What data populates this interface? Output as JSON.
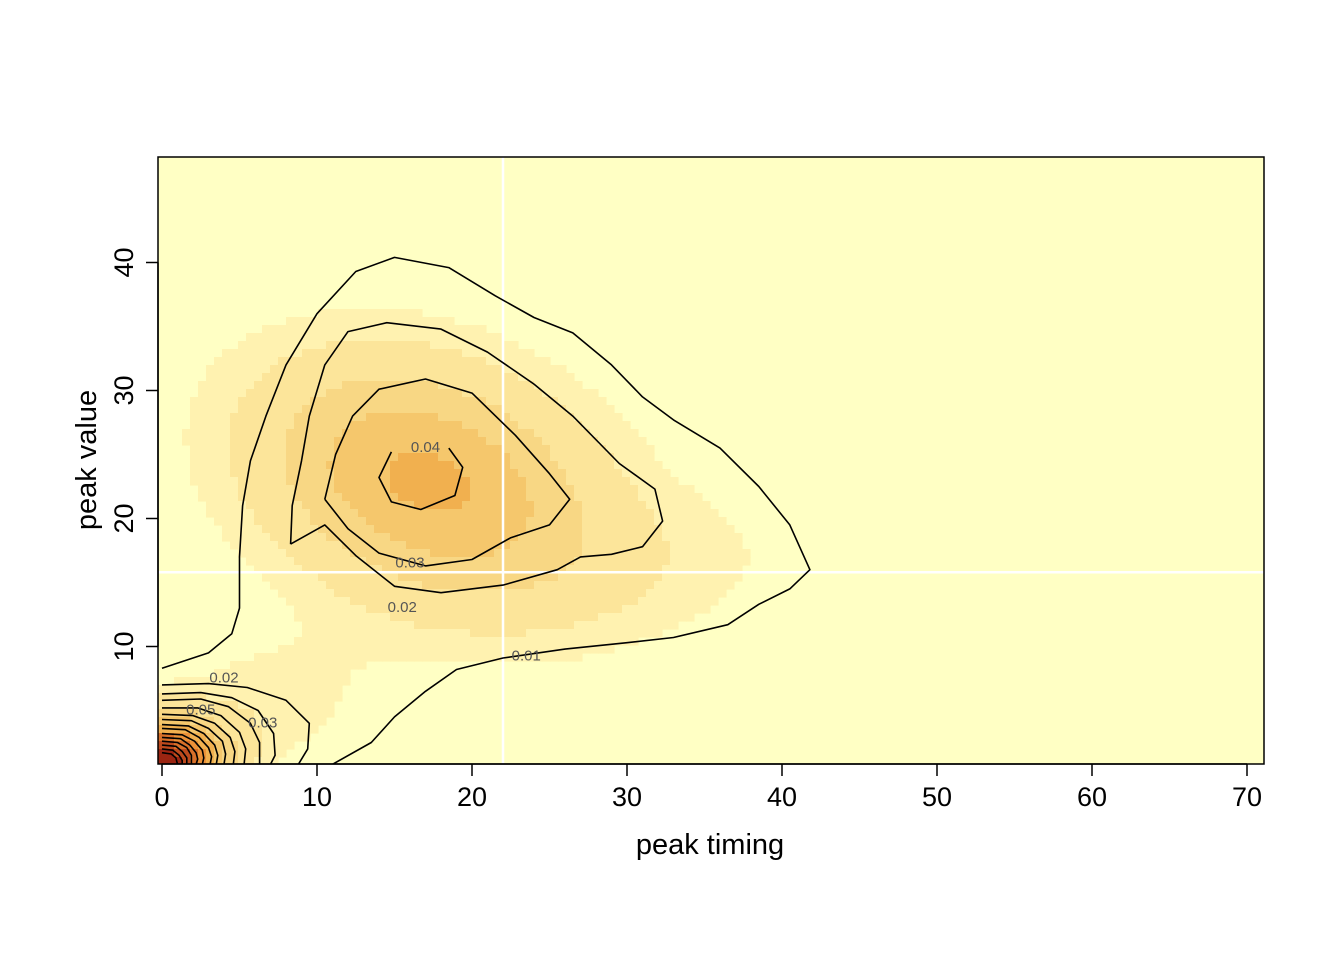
{
  "chart_data": {
    "type": "heatmap",
    "subtype": "filled-contour density",
    "title": "",
    "xlabel": "peak timing",
    "ylabel": "peak value",
    "xlim": [
      -0.5,
      71
    ],
    "ylim": [
      0.8,
      48
    ],
    "x_ticks": [
      0,
      10,
      20,
      30,
      40,
      50,
      60,
      70
    ],
    "y_ticks": [
      10,
      20,
      30,
      40
    ],
    "grid": false,
    "colors": {
      "background": "#ffffc4",
      "fill_levels": [
        "#ffffc4",
        "#fff2b0",
        "#fce59a",
        "#f8d784",
        "#f5c76c",
        "#f1b04f",
        "#eb9138",
        "#d8702a",
        "#bd4a1d",
        "#9b2512",
        "#7a0a06"
      ],
      "contour_line": "#000000",
      "reference_line": "#ffffff"
    },
    "reference_lines": {
      "x": 22,
      "y": 15.8
    },
    "contour_labels": [
      {
        "text": "0.04",
        "x": 17,
        "y": 25.5
      },
      {
        "text": "0.03",
        "x": 16,
        "y": 16.5
      },
      {
        "text": "0.02",
        "x": 15.5,
        "y": 13
      },
      {
        "text": "0.01",
        "x": 23.5,
        "y": 9.2
      },
      {
        "text": "0.02",
        "x": 4,
        "y": 7.5
      },
      {
        "text": "0.05",
        "x": 2.5,
        "y": 5
      },
      {
        "text": "0.03",
        "x": 6.5,
        "y": 4
      }
    ],
    "contours": [
      {
        "level": 0.01,
        "points": [
          [
            0,
            8.3
          ],
          [
            3,
            9.5
          ],
          [
            4.5,
            11
          ],
          [
            5,
            13
          ],
          [
            5,
            17
          ],
          [
            5.2,
            21
          ],
          [
            5.7,
            24.5
          ],
          [
            6.7,
            28
          ],
          [
            8,
            32
          ],
          [
            10,
            36
          ],
          [
            12.5,
            39.3
          ],
          [
            15,
            40.4
          ],
          [
            18.5,
            39.6
          ],
          [
            21.5,
            37.4
          ],
          [
            24,
            35.7
          ],
          [
            26.5,
            34.5
          ],
          [
            29,
            32
          ],
          [
            31,
            29.5
          ],
          [
            33,
            27.7
          ],
          [
            36,
            25.5
          ],
          [
            38.5,
            22.5
          ],
          [
            40.5,
            19.5
          ],
          [
            41.8,
            16
          ],
          [
            40.5,
            14.5
          ],
          [
            38.5,
            13.3
          ],
          [
            36.5,
            11.7
          ],
          [
            33,
            10.7
          ],
          [
            30,
            10.3
          ],
          [
            26,
            9.8
          ],
          [
            22,
            9.1
          ],
          [
            19,
            8.2
          ],
          [
            17,
            6.5
          ],
          [
            15,
            4.5
          ],
          [
            13.5,
            2.5
          ],
          [
            11,
            0.8
          ]
        ]
      },
      {
        "level": 0.02,
        "points": [
          [
            8.3,
            18
          ],
          [
            10.5,
            19.5
          ],
          [
            12.5,
            17.1
          ],
          [
            15,
            14.7
          ],
          [
            18,
            14.2
          ],
          [
            22,
            14.8
          ],
          [
            25.5,
            16
          ],
          [
            27,
            17
          ],
          [
            29,
            17.2
          ],
          [
            31,
            17.8
          ],
          [
            32.3,
            19.8
          ],
          [
            31.8,
            22.3
          ],
          [
            29.5,
            24.3
          ],
          [
            26.5,
            28
          ],
          [
            24,
            30.5
          ],
          [
            21,
            33
          ],
          [
            18,
            34.8
          ],
          [
            14.5,
            35.3
          ],
          [
            12,
            34.6
          ],
          [
            10.5,
            32
          ],
          [
            9.5,
            28
          ],
          [
            9,
            24.5
          ],
          [
            8.4,
            21
          ],
          [
            8.3,
            18
          ]
        ]
      },
      {
        "level": 0.03,
        "points": [
          [
            10.5,
            21.5
          ],
          [
            12,
            19.2
          ],
          [
            14,
            17.3
          ],
          [
            17,
            16.3
          ],
          [
            20,
            16.8
          ],
          [
            22.5,
            18.5
          ],
          [
            25,
            19.5
          ],
          [
            26.3,
            21.5
          ],
          [
            25,
            23.5
          ],
          [
            22.8,
            26.5
          ],
          [
            20,
            29.8
          ],
          [
            17,
            30.9
          ],
          [
            14,
            30.1
          ],
          [
            12.3,
            28
          ],
          [
            11.2,
            25
          ],
          [
            10.5,
            21.5
          ]
        ]
      },
      {
        "level": 0.04,
        "points": [
          [
            18.5,
            25.5
          ],
          [
            19.4,
            24
          ],
          [
            18.9,
            21.8
          ],
          [
            16.7,
            20.7
          ],
          [
            14.8,
            21.3
          ],
          [
            14,
            23.2
          ],
          [
            14.8,
            25.2
          ]
        ]
      },
      {
        "level": 0.015,
        "points": [
          [
            0,
            7
          ],
          [
            3,
            7.1
          ],
          [
            5.5,
            6.8
          ],
          [
            8,
            5.8
          ],
          [
            9.5,
            4
          ],
          [
            9.4,
            2
          ],
          [
            8.8,
            0.8
          ]
        ]
      },
      {
        "level": 0.02,
        "points": [
          [
            0,
            6.3
          ],
          [
            2.5,
            6.4
          ],
          [
            4.5,
            6
          ],
          [
            6.2,
            5
          ],
          [
            7.2,
            3.2
          ],
          [
            7.3,
            1.5
          ],
          [
            7,
            0.8
          ]
        ]
      },
      {
        "level": 0.025,
        "points": [
          [
            0,
            5.8
          ],
          [
            2.5,
            5.9
          ],
          [
            4.3,
            5.3
          ],
          [
            5.7,
            4
          ],
          [
            6.3,
            2.5
          ],
          [
            6.3,
            0.8
          ]
        ]
      },
      {
        "level": 0.03,
        "points": [
          [
            0,
            5.2
          ],
          [
            2.3,
            5.2
          ],
          [
            3.8,
            4.6
          ],
          [
            5,
            3.3
          ],
          [
            5.4,
            2
          ],
          [
            5.3,
            0.8
          ]
        ]
      },
      {
        "level": 0.035,
        "points": [
          [
            0,
            4.7
          ],
          [
            2,
            4.6
          ],
          [
            3.4,
            4
          ],
          [
            4.4,
            2.9
          ],
          [
            4.7,
            1.8
          ],
          [
            4.6,
            0.8
          ]
        ]
      },
      {
        "level": 0.04,
        "points": [
          [
            0,
            4.3
          ],
          [
            1.9,
            4.2
          ],
          [
            3,
            3.6
          ],
          [
            3.9,
            2.6
          ],
          [
            4.1,
            1.6
          ],
          [
            4,
            0.8
          ]
        ]
      },
      {
        "level": 0.045,
        "points": [
          [
            0,
            3.9
          ],
          [
            1.7,
            3.8
          ],
          [
            2.7,
            3.2
          ],
          [
            3.4,
            2.3
          ],
          [
            3.6,
            1.5
          ],
          [
            3.5,
            0.8
          ]
        ]
      },
      {
        "level": 0.05,
        "points": [
          [
            0,
            3.6
          ],
          [
            1.5,
            3.5
          ],
          [
            2.4,
            2.9
          ],
          [
            3,
            2.1
          ],
          [
            3.2,
            1.4
          ],
          [
            3.1,
            0.8
          ]
        ]
      },
      {
        "level": 0.055,
        "points": [
          [
            0,
            3.2
          ],
          [
            1.3,
            3.1
          ],
          [
            2.1,
            2.6
          ],
          [
            2.6,
            1.9
          ],
          [
            2.7,
            1.3
          ],
          [
            2.6,
            0.8
          ]
        ]
      },
      {
        "level": 0.06,
        "points": [
          [
            0,
            2.9
          ],
          [
            1.2,
            2.8
          ],
          [
            1.8,
            2.3
          ],
          [
            2.2,
            1.7
          ],
          [
            2.3,
            1.2
          ],
          [
            2.2,
            0.8
          ]
        ]
      },
      {
        "level": 0.065,
        "points": [
          [
            0,
            2.6
          ],
          [
            1,
            2.5
          ],
          [
            1.6,
            2.1
          ],
          [
            1.9,
            1.5
          ],
          [
            1.9,
            1.1
          ],
          [
            1.9,
            0.8
          ]
        ]
      },
      {
        "level": 0.07,
        "points": [
          [
            0,
            2.3
          ],
          [
            0.9,
            2.2
          ],
          [
            1.3,
            1.8
          ],
          [
            1.6,
            1.3
          ],
          [
            1.6,
            0.8
          ]
        ]
      },
      {
        "level": 0.075,
        "points": [
          [
            0,
            2
          ],
          [
            0.7,
            1.9
          ],
          [
            1.1,
            1.5
          ],
          [
            1.3,
            1.1
          ],
          [
            1.3,
            0.8
          ]
        ]
      },
      {
        "level": 0.08,
        "points": [
          [
            0,
            1.7
          ],
          [
            0.6,
            1.6
          ],
          [
            0.9,
            1.3
          ],
          [
            1,
            0.8
          ]
        ]
      }
    ]
  }
}
